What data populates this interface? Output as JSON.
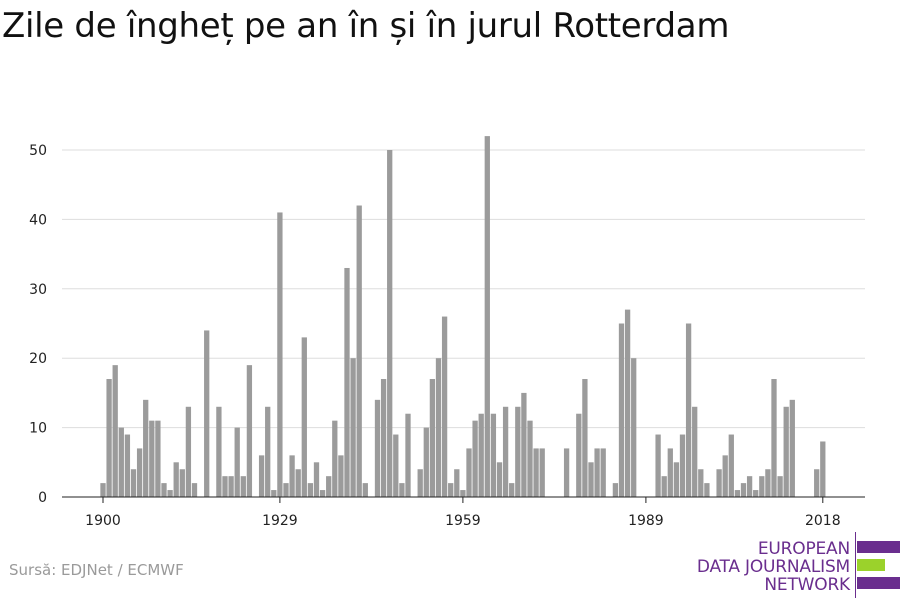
{
  "title": "Zile de îngheț pe an în și în jurul Rotterdam",
  "source": "Sursă: EDJNet / ECMWF",
  "logo": {
    "lines": [
      "EUROPEAN",
      "DATA JOURNALISM",
      "NETWORK"
    ],
    "colors": [
      "#6a2e8e",
      "#9bd22b",
      "#6a2e8e"
    ]
  },
  "colors": {
    "bar": "#9b9b9b",
    "grid": "#dddddd",
    "axis": "#222222",
    "text": "#222222"
  },
  "chart_data": {
    "type": "bar",
    "title": "Zile de îngheț pe an în și în jurul Rotterdam",
    "xlabel": "",
    "ylabel": "",
    "x_ticks": [
      "1900",
      "1929",
      "1959",
      "1989",
      "2018"
    ],
    "y_ticks": [
      0,
      10,
      20,
      30,
      40,
      50
    ],
    "ylim": [
      0,
      55
    ],
    "xlim": [
      1900,
      2018
    ],
    "grid": "horizontal",
    "x": [
      1900,
      1901,
      1902,
      1903,
      1904,
      1905,
      1906,
      1907,
      1908,
      1909,
      1910,
      1911,
      1912,
      1913,
      1914,
      1915,
      1916,
      1917,
      1918,
      1919,
      1920,
      1921,
      1922,
      1923,
      1924,
      1925,
      1926,
      1927,
      1928,
      1929,
      1930,
      1931,
      1932,
      1933,
      1934,
      1935,
      1936,
      1937,
      1938,
      1939,
      1940,
      1941,
      1942,
      1943,
      1944,
      1945,
      1946,
      1947,
      1948,
      1949,
      1950,
      1951,
      1952,
      1953,
      1954,
      1955,
      1956,
      1957,
      1958,
      1959,
      1960,
      1961,
      1962,
      1963,
      1964,
      1965,
      1966,
      1967,
      1968,
      1969,
      1970,
      1971,
      1972,
      1973,
      1974,
      1975,
      1976,
      1977,
      1978,
      1979,
      1980,
      1981,
      1982,
      1983,
      1984,
      1985,
      1986,
      1987,
      1988,
      1989,
      1990,
      1991,
      1992,
      1993,
      1994,
      1995,
      1996,
      1997,
      1998,
      1999,
      2000,
      2001,
      2002,
      2003,
      2004,
      2005,
      2006,
      2007,
      2008,
      2009,
      2010,
      2011,
      2012,
      2013,
      2014,
      2015,
      2016,
      2017,
      2018
    ],
    "values": [
      2,
      17,
      19,
      10,
      9,
      4,
      7,
      14,
      11,
      11,
      2,
      1,
      5,
      4,
      13,
      2,
      0,
      24,
      0,
      13,
      3,
      3,
      10,
      3,
      19,
      0,
      6,
      13,
      1,
      41,
      2,
      6,
      4,
      23,
      2,
      5,
      1,
      3,
      11,
      6,
      33,
      20,
      42,
      2,
      0,
      14,
      17,
      50,
      9,
      2,
      12,
      0,
      4,
      10,
      17,
      20,
      26,
      2,
      4,
      1,
      7,
      11,
      12,
      52,
      12,
      5,
      13,
      2,
      13,
      15,
      11,
      7,
      7,
      0,
      0,
      0,
      7,
      0,
      12,
      17,
      5,
      7,
      7,
      0,
      2,
      25,
      27,
      20,
      0,
      0,
      0,
      9,
      3,
      7,
      5,
      9,
      25,
      13,
      4,
      2,
      0,
      4,
      6,
      9,
      1,
      2,
      3,
      1,
      3,
      4,
      17,
      3,
      13,
      14,
      0,
      0,
      0,
      4,
      8
    ]
  }
}
